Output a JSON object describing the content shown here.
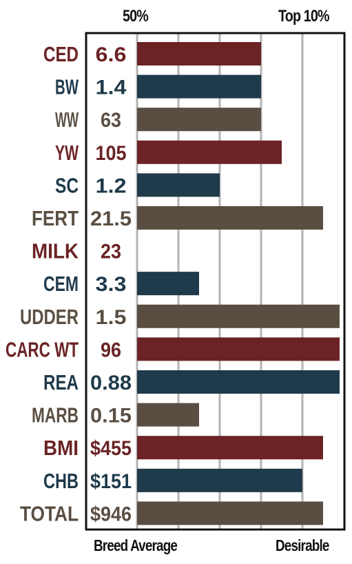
{
  "header": {
    "left_label": "50%",
    "right_label": "Top 10%"
  },
  "footer": {
    "left_label": "Breed Average",
    "right_label": "Desirable"
  },
  "colors": {
    "red": "#6b2325",
    "blue": "#1f3a4a",
    "brown": "#5a4e42",
    "grid": "#b3b3b3",
    "frame": "#111111"
  },
  "chart_data": {
    "type": "bar",
    "orientation": "horizontal",
    "xlim": [
      0,
      5
    ],
    "grid": true,
    "categories": [
      "CED",
      "BW",
      "WW",
      "YW",
      "SC",
      "FERT",
      "MILK",
      "CEM",
      "UDDER",
      "CARC WT",
      "REA",
      "MARB",
      "BMI",
      "CHB",
      "TOTAL"
    ],
    "value_labels": [
      "6.6",
      "1.4",
      "63",
      "105",
      "1.2",
      "21.5",
      "23",
      "3.3",
      "1.5",
      "96",
      "0.88",
      "0.15",
      "$455",
      "$151",
      "$946"
    ],
    "values": [
      3.0,
      3.0,
      3.0,
      3.5,
      2.0,
      4.5,
      0,
      1.5,
      4.9,
      4.9,
      4.9,
      1.5,
      4.5,
      4.0,
      4.5
    ],
    "color_keys": [
      "red",
      "blue",
      "brown",
      "red",
      "blue",
      "brown",
      "red",
      "blue",
      "brown",
      "red",
      "blue",
      "brown",
      "red",
      "blue",
      "brown"
    ]
  }
}
